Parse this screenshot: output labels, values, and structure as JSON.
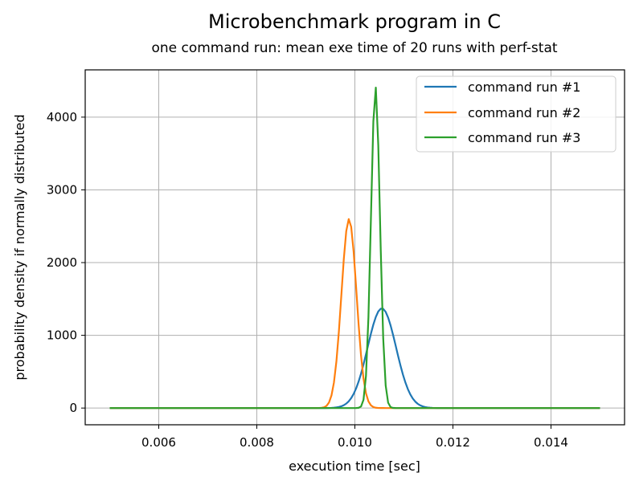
{
  "chart_data": {
    "type": "line",
    "title": "Microbenchmark program in C",
    "subtitle": "one command run: mean exe time of 20 runs with perf-stat",
    "xlabel": "execution time [sec]",
    "ylabel": "probability density if normally distributed",
    "xlim": [
      0.0045,
      0.0155
    ],
    "ylim": [
      -230,
      4650
    ],
    "x_ticks": [
      0.006,
      0.008,
      0.01,
      0.012,
      0.014
    ],
    "x_tick_labels": [
      "0.006",
      "0.008",
      "0.010",
      "0.012",
      "0.014"
    ],
    "y_ticks": [
      0,
      1000,
      2000,
      3000,
      4000
    ],
    "y_tick_labels": [
      "0",
      "1000",
      "2000",
      "3000",
      "4000"
    ],
    "grid": true,
    "legend_position": "top-right",
    "x_range": [
      0.005,
      0.015
    ],
    "series": [
      {
        "name": "command run #1",
        "color": "#1f77b4",
        "mean": 0.01055,
        "peak": 1370
      },
      {
        "name": "command run #2",
        "color": "#ff7f0e",
        "mean": 0.00988,
        "peak": 2600
      },
      {
        "name": "command run #3",
        "color": "#2ca02c",
        "mean": 0.01042,
        "peak": 4420
      }
    ]
  }
}
